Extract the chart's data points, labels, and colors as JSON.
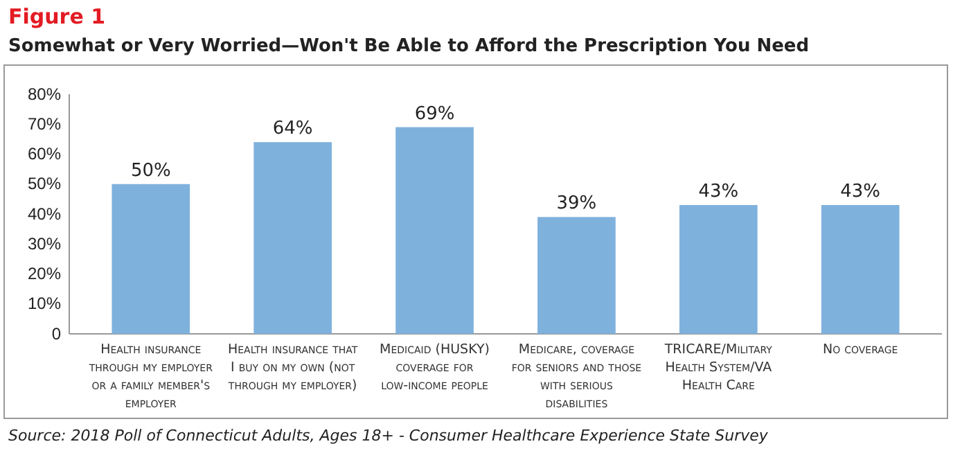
{
  "chart_data": {
    "type": "bar",
    "title": "Figure 1",
    "subtitle": "Somewhat or Very Worried—Won't Be Able to Afford the Prescription You Need",
    "categories": [
      "Health insurance through my employer or a family member's employer",
      "Health insurance that I buy on my own (not through my employer)",
      "Medicaid (HUSKY) coverage for low-income people",
      "Medicare, coverage for seniors and those with serious disabilities",
      "TRICARE/Military Health System/VA Health Care",
      "No coverage"
    ],
    "values": [
      50,
      64,
      69,
      39,
      43,
      43
    ],
    "value_labels": [
      "50%",
      "64%",
      "69%",
      "39%",
      "43%",
      "43%"
    ],
    "color": "#7fb1dd",
    "ylim": [
      0,
      80
    ],
    "yticks": [
      {
        "value": 0,
        "label": "0"
      },
      {
        "value": 10,
        "label": "10%"
      },
      {
        "value": 20,
        "label": "20%"
      },
      {
        "value": 30,
        "label": "30%"
      },
      {
        "value": 40,
        "label": "40%"
      },
      {
        "value": 50,
        "label": "50%"
      },
      {
        "value": 60,
        "label": "60%"
      },
      {
        "value": 70,
        "label": "70%"
      },
      {
        "value": 80,
        "label": "80%"
      }
    ],
    "grid": false,
    "annotations": [
      "Source: 2018 Poll of Connecticut Adults, Ages 18+ - Consumer Healthcare Experience State Survey"
    ]
  }
}
